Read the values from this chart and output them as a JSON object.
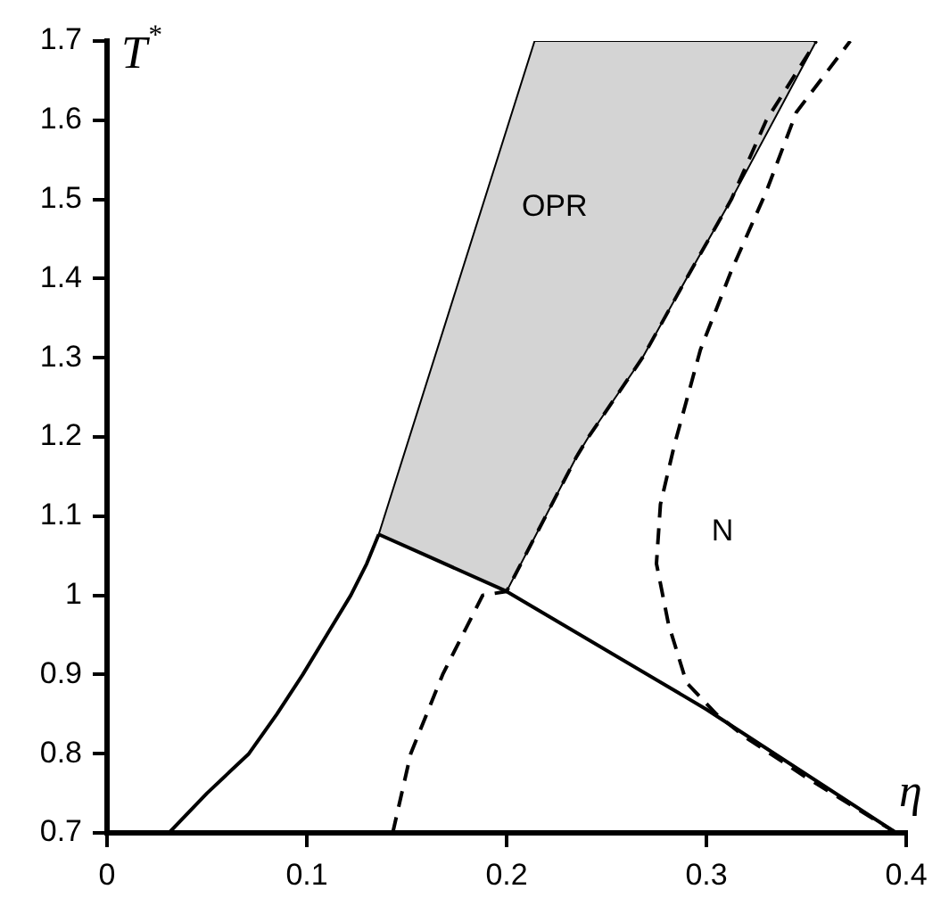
{
  "chart_data": {
    "type": "line",
    "xlabel": "η",
    "ylabel": "T$^{*}$",
    "xlim": [
      0,
      0.4
    ],
    "ylim": [
      0.7,
      1.7
    ],
    "xticks": [
      0,
      0.1,
      0.2,
      0.3,
      0.4
    ],
    "yticks": [
      0.7,
      0.8,
      0.9,
      1,
      1.1,
      1.2,
      1.3,
      1.4,
      1.5,
      1.6,
      1.7
    ],
    "grid": false,
    "legend": false,
    "marker": "none",
    "series": [
      {
        "color": "#000000",
        "x": [
          0.031,
          0.05,
          0.071,
          0.085,
          0.098,
          0.11,
          0.122,
          0.13,
          0.136
        ],
        "values": [
          0.7,
          0.75,
          0.8,
          0.85,
          0.9,
          0.95,
          1.0,
          1.04,
          1.077
        ]
      },
      {
        "color": "#000000",
        "x": [
          0.136,
          0.16,
          0.2,
          0.3,
          0.395
        ],
        "values": [
          1.077,
          1.05,
          1.005,
          0.856,
          0.7
        ]
      },
      {
        "color": "#000000",
        "line_style": "dashed",
        "x": [
          0.143,
          0.152,
          0.168,
          0.188,
          0.2,
          0.235,
          0.241,
          0.268,
          0.29,
          0.3125,
          0.33,
          0.355
        ],
        "values": [
          0.7,
          0.8,
          0.9,
          1.0,
          1.005,
          1.175,
          1.2,
          1.3,
          1.4,
          1.5,
          1.6,
          1.7
        ]
      },
      {
        "color": "#000000",
        "line_style": "dashed",
        "x": [
          0.395,
          0.35,
          0.32,
          0.305,
          0.29,
          0.281,
          0.275,
          0.277,
          0.284,
          0.297,
          0.3125,
          0.33,
          0.345,
          0.372
        ],
        "values": [
          0.7,
          0.77,
          0.82,
          0.85,
          0.89,
          0.964,
          1.04,
          1.115,
          1.19,
          1.31,
          1.41,
          1.51,
          1.61,
          1.7
        ]
      },
      {
        "type": "area",
        "color": "#d4d4d4",
        "x": [
          0.136,
          0.214,
          0.355,
          0.3125,
          0.29,
          0.268,
          0.241,
          0.235,
          0.2,
          0.16,
          0.136
        ],
        "values": [
          1.077,
          1.7,
          1.7,
          1.5,
          1.4,
          1.3,
          1.2,
          1.175,
          1.005,
          1.05,
          1.077
        ]
      }
    ],
    "annotations": [
      "OPR",
      "N"
    ]
  }
}
